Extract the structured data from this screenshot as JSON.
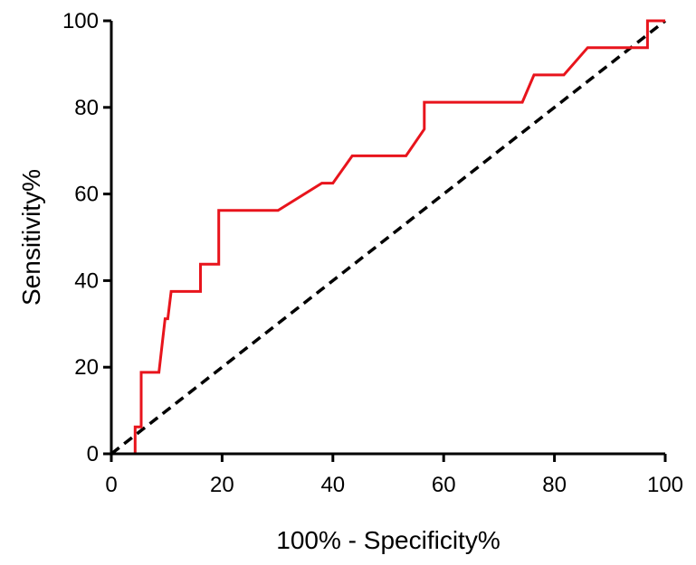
{
  "chart_data": {
    "type": "line",
    "title": "",
    "xlabel": "100% - Specificity%",
    "ylabel": "Sensitivity%",
    "xlim": [
      0,
      100
    ],
    "ylim": [
      0,
      100
    ],
    "x_ticks": [
      0,
      20,
      40,
      60,
      80,
      100
    ],
    "y_ticks": [
      0,
      20,
      40,
      60,
      80,
      100
    ],
    "x_tick_labels": [
      "0",
      "20",
      "40",
      "60",
      "80",
      "100"
    ],
    "y_tick_labels": [
      "0",
      "20",
      "40",
      "60",
      "80",
      "100"
    ],
    "grid": false,
    "legend": "none",
    "series": [
      {
        "color": "#e8141c",
        "style": "solid",
        "points": [
          [
            4.3,
            0
          ],
          [
            4.3,
            6.2
          ],
          [
            5.4,
            6.2
          ],
          [
            5.4,
            18.8
          ],
          [
            8.6,
            18.8
          ],
          [
            9.7,
            31.2
          ],
          [
            10.2,
            31.2
          ],
          [
            10.8,
            37.5
          ],
          [
            16.1,
            37.5
          ],
          [
            16.1,
            43.8
          ],
          [
            19.4,
            43.8
          ],
          [
            19.4,
            56.2
          ],
          [
            30.1,
            56.2
          ],
          [
            38.0,
            62.5
          ],
          [
            40.0,
            62.5
          ],
          [
            43.5,
            68.8
          ],
          [
            53.2,
            68.8
          ],
          [
            56.5,
            75.0
          ],
          [
            56.5,
            81.2
          ],
          [
            74.2,
            81.2
          ],
          [
            76.3,
            87.5
          ],
          [
            81.7,
            87.5
          ],
          [
            86.0,
            93.8
          ],
          [
            96.8,
            93.8
          ],
          [
            96.8,
            100
          ],
          [
            100,
            100
          ]
        ]
      },
      {
        "color": "#000000",
        "style": "dashed",
        "points": [
          [
            0,
            0
          ],
          [
            100,
            100
          ]
        ]
      }
    ]
  }
}
